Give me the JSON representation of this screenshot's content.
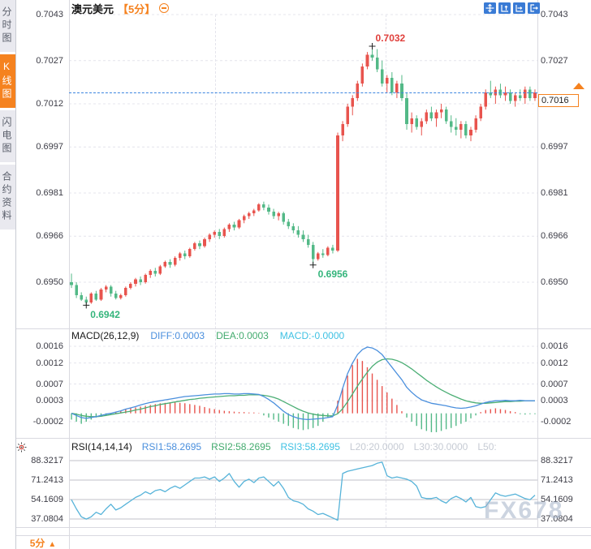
{
  "header": {
    "symbol": "澳元美元",
    "period_tag": "【5分】",
    "toolbar_icons": [
      "crosshair-icon",
      "y-axis-zoom-icon",
      "x-axis-zoom-icon",
      "exit-chart-icon"
    ]
  },
  "sidebar": {
    "tabs": [
      {
        "label": "分时图",
        "active": false
      },
      {
        "label": "K线图",
        "active": true
      },
      {
        "label": "闪电图",
        "active": false
      },
      {
        "label": "合约资料",
        "active": false
      }
    ]
  },
  "current_price": {
    "value": "0.7016",
    "price": 0.7016
  },
  "annotations": {
    "high": {
      "label": "0.7032",
      "candle_index": 61,
      "price": 0.7032
    },
    "low": {
      "label": "0.6942",
      "candle_index": 3,
      "price": 0.6942
    },
    "swing_low": {
      "label": "0.6956",
      "candle_index": 49,
      "price": 0.6956
    }
  },
  "macd": {
    "title": "MACD(26,12,9)",
    "diff_label": "DIFF:0.0003",
    "dea_label": "DEA:0.0003",
    "macd_label": "MACD:-0.0000"
  },
  "rsi": {
    "title": "RSI(14,14,14)",
    "rsi1_label": "RSI1:58.2695",
    "rsi2_label": "RSI2:58.2695",
    "rsi3_label": "RSI3:58.2695",
    "l20_label": "L20:20.0000",
    "l30_label": "L30:30.0000",
    "l50_label": "L50:"
  },
  "footer": {
    "period_label": "5分",
    "arrow": "▲"
  },
  "watermark": {
    "text": "FX678"
  },
  "colors": {
    "up": "#e8544e",
    "down": "#53b987",
    "accent": "#f5821f",
    "diff_line": "#4a8fdd",
    "dea_line": "#4bae74",
    "rsi_line": "#56b3d9",
    "price_line": "#3d86e0",
    "grid_dashed": "#e4e4ec",
    "grid_solid": "#c2c2c8"
  },
  "chart_data": [
    {
      "type": "candlestick",
      "title": "澳元美元 5分",
      "ylim": [
        0.694,
        0.7045
      ],
      "y_tick_labels": [
        "0.7043",
        "0.7027",
        "0.7012",
        "0.6997",
        "0.6981",
        "0.6966",
        "0.6950"
      ],
      "y_tick_values": [
        0.7043,
        0.7027,
        0.7012,
        0.6997,
        0.6981,
        0.6966,
        0.695
      ],
      "last_price": 0.7016,
      "marked_high": 0.7032,
      "marked_low": 0.6942,
      "marked_swing_low": 0.6956,
      "ohlc": [
        [
          0.695,
          0.6953,
          0.6948,
          0.6949
        ],
        [
          0.6949,
          0.695,
          0.69445,
          0.69455
        ],
        [
          0.69455,
          0.69465,
          0.69435,
          0.6944
        ],
        [
          0.6944,
          0.6945,
          0.6942,
          0.6943
        ],
        [
          0.6943,
          0.69465,
          0.69425,
          0.6946
        ],
        [
          0.6946,
          0.6947,
          0.69435,
          0.6944
        ],
        [
          0.6944,
          0.6948,
          0.69435,
          0.69475
        ],
        [
          0.69475,
          0.6949,
          0.69465,
          0.69485
        ],
        [
          0.69485,
          0.6949,
          0.6945,
          0.6946
        ],
        [
          0.6946,
          0.6947,
          0.6944,
          0.69445
        ],
        [
          0.69445,
          0.6946,
          0.6944,
          0.69455
        ],
        [
          0.69455,
          0.69485,
          0.6945,
          0.6948
        ],
        [
          0.6948,
          0.695,
          0.69475,
          0.69495
        ],
        [
          0.69495,
          0.69515,
          0.69485,
          0.6951
        ],
        [
          0.6951,
          0.6952,
          0.6949,
          0.695
        ],
        [
          0.695,
          0.6953,
          0.69495,
          0.69525
        ],
        [
          0.69525,
          0.69545,
          0.69515,
          0.6954
        ],
        [
          0.6954,
          0.6955,
          0.6952,
          0.6953
        ],
        [
          0.6953,
          0.6956,
          0.69525,
          0.69555
        ],
        [
          0.69555,
          0.69575,
          0.6955,
          0.6957
        ],
        [
          0.6957,
          0.6958,
          0.6955,
          0.6956
        ],
        [
          0.6956,
          0.6959,
          0.69555,
          0.69585
        ],
        [
          0.69585,
          0.69605,
          0.69575,
          0.696
        ],
        [
          0.696,
          0.6961,
          0.6958,
          0.6959
        ],
        [
          0.6959,
          0.6962,
          0.69585,
          0.69615
        ],
        [
          0.69615,
          0.6964,
          0.6961,
          0.69635
        ],
        [
          0.69635,
          0.69645,
          0.69615,
          0.69625
        ],
        [
          0.69625,
          0.69655,
          0.6962,
          0.6965
        ],
        [
          0.6965,
          0.6967,
          0.6964,
          0.69665
        ],
        [
          0.69665,
          0.6968,
          0.69655,
          0.69675
        ],
        [
          0.69675,
          0.69685,
          0.6965,
          0.6966
        ],
        [
          0.6966,
          0.6969,
          0.69655,
          0.69685
        ],
        [
          0.69685,
          0.69705,
          0.69675,
          0.697
        ],
        [
          0.697,
          0.6971,
          0.6968,
          0.6969
        ],
        [
          0.6969,
          0.6972,
          0.69685,
          0.69715
        ],
        [
          0.69715,
          0.69735,
          0.69705,
          0.6973
        ],
        [
          0.6973,
          0.69745,
          0.6972,
          0.6974
        ],
        [
          0.6974,
          0.69755,
          0.6973,
          0.6975
        ],
        [
          0.6975,
          0.69775,
          0.69745,
          0.6977
        ],
        [
          0.6977,
          0.6978,
          0.6975,
          0.6976
        ],
        [
          0.6976,
          0.6977,
          0.69735,
          0.69745
        ],
        [
          0.69745,
          0.69755,
          0.6972,
          0.6973
        ],
        [
          0.6973,
          0.69745,
          0.69715,
          0.6974
        ],
        [
          0.6974,
          0.69745,
          0.697,
          0.6971
        ],
        [
          0.6971,
          0.6972,
          0.69685,
          0.69695
        ],
        [
          0.69695,
          0.69705,
          0.6967,
          0.6968
        ],
        [
          0.6968,
          0.69695,
          0.69655,
          0.69665
        ],
        [
          0.69665,
          0.6968,
          0.6964,
          0.6965
        ],
        [
          0.6965,
          0.69665,
          0.6962,
          0.6963
        ],
        [
          0.6963,
          0.6964,
          0.6956,
          0.6958
        ],
        [
          0.6958,
          0.69605,
          0.69575,
          0.696
        ],
        [
          0.696,
          0.69615,
          0.69585,
          0.69595
        ],
        [
          0.69595,
          0.69625,
          0.6959,
          0.6962
        ],
        [
          0.6962,
          0.6963,
          0.696,
          0.6961
        ],
        [
          0.6961,
          0.7002,
          0.69605,
          0.7001
        ],
        [
          0.7001,
          0.7006,
          0.6999,
          0.7005
        ],
        [
          0.7005,
          0.7012,
          0.7004,
          0.7011
        ],
        [
          0.7011,
          0.7015,
          0.7008,
          0.7014
        ],
        [
          0.7014,
          0.702,
          0.7013,
          0.7019
        ],
        [
          0.7019,
          0.7026,
          0.7018,
          0.7025
        ],
        [
          0.7025,
          0.703,
          0.7024,
          0.7029
        ],
        [
          0.7029,
          0.7032,
          0.7027,
          0.7028
        ],
        [
          0.7028,
          0.7031,
          0.7023,
          0.7024
        ],
        [
          0.7024,
          0.7027,
          0.7018,
          0.7019
        ],
        [
          0.7019,
          0.7022,
          0.7016,
          0.7021
        ],
        [
          0.7021,
          0.7023,
          0.7015,
          0.7016
        ],
        [
          0.7016,
          0.702,
          0.7014,
          0.7019
        ],
        [
          0.7019,
          0.7022,
          0.7013,
          0.7014
        ],
        [
          0.7014,
          0.7016,
          0.7003,
          0.7005
        ],
        [
          0.7005,
          0.7009,
          0.7002,
          0.7007
        ],
        [
          0.7007,
          0.7008,
          0.7003,
          0.7004
        ],
        [
          0.7004,
          0.7007,
          0.7001,
          0.7006
        ],
        [
          0.7006,
          0.701,
          0.7005,
          0.7009
        ],
        [
          0.7009,
          0.7011,
          0.7006,
          0.7007
        ],
        [
          0.7007,
          0.701,
          0.7004,
          0.7009
        ],
        [
          0.7009,
          0.7012,
          0.7007,
          0.701
        ],
        [
          0.701,
          0.7011,
          0.7005,
          0.7006
        ],
        [
          0.7006,
          0.7008,
          0.7002,
          0.7004
        ],
        [
          0.7004,
          0.7007,
          0.7001,
          0.7003
        ],
        [
          0.7003,
          0.7006,
          0.7,
          0.7005
        ],
        [
          0.7005,
          0.7006,
          0.7,
          0.7001
        ],
        [
          0.7001,
          0.7004,
          0.6999,
          0.7003
        ],
        [
          0.7003,
          0.7008,
          0.7002,
          0.7007
        ],
        [
          0.7007,
          0.7012,
          0.7006,
          0.7011
        ],
        [
          0.7011,
          0.7017,
          0.701,
          0.7016
        ],
        [
          0.7016,
          0.702,
          0.7014,
          0.7015
        ],
        [
          0.7015,
          0.7018,
          0.7012,
          0.7017
        ],
        [
          0.7017,
          0.7019,
          0.7014,
          0.7015
        ],
        [
          0.7015,
          0.7018,
          0.7013,
          0.7016
        ],
        [
          0.7016,
          0.7017,
          0.7012,
          0.7013
        ],
        [
          0.7013,
          0.7016,
          0.7011,
          0.7015
        ],
        [
          0.7015,
          0.7017,
          0.7013,
          0.7014
        ],
        [
          0.7014,
          0.7018,
          0.7012,
          0.7017
        ],
        [
          0.7017,
          0.7018,
          0.7013,
          0.7014
        ],
        [
          0.7014,
          0.7017,
          0.7013,
          0.7016
        ]
      ]
    },
    {
      "type": "macd",
      "params": [
        26,
        12,
        9
      ],
      "y_tick_labels": [
        "0.0016",
        "0.0012",
        "0.0007",
        "0.0003",
        "-0.0002"
      ],
      "y_tick_values": [
        0.0016,
        0.0012,
        0.0007,
        0.0003,
        -0.0002
      ],
      "diff": [
        0,
        -5e-05,
        -0.0001,
        -0.00012,
        -0.0001,
        -8e-05,
        -5e-05,
        -2e-05,
        0,
        3e-05,
        6e-05,
        0.0001,
        0.00013,
        0.00016,
        0.0002,
        0.00023,
        0.00026,
        0.00028,
        0.0003,
        0.00032,
        0.00034,
        0.00036,
        0.00038,
        0.0004,
        0.00041,
        0.00042,
        0.00043,
        0.00044,
        0.00045,
        0.00046,
        0.00046,
        0.00047,
        0.00047,
        0.00046,
        0.00046,
        0.00047,
        0.00047,
        0.00046,
        0.00045,
        0.0004,
        0.00033,
        0.00025,
        0.00015,
        5e-05,
        -3e-05,
        -8e-05,
        -0.00012,
        -0.00014,
        -0.00015,
        -0.00014,
        -0.00013,
        -0.00012,
        -0.0001,
        -8e-05,
        0.0002,
        0.0006,
        0.00095,
        0.0012,
        0.0014,
        0.00152,
        0.00158,
        0.00156,
        0.0015,
        0.0014,
        0.00125,
        0.0011,
        0.00095,
        0.0008,
        0.00062,
        0.0005,
        0.0004,
        0.00032,
        0.00028,
        0.00024,
        0.00022,
        0.0002,
        0.00018,
        0.00015,
        0.00013,
        0.00012,
        0.00013,
        0.00015,
        0.00018,
        0.00022,
        0.00026,
        0.00028,
        0.0003,
        0.0003,
        0.00031,
        0.0003,
        0.0003,
        0.00031,
        0.0003,
        0.0003,
        0.0003
      ],
      "dea": [
        0,
        -2e-05,
        -5e-05,
        -7e-05,
        -8e-05,
        -8e-05,
        -7e-05,
        -5e-05,
        -3e-05,
        -1e-05,
        1e-05,
        3e-05,
        5e-05,
        8e-05,
        0.0001,
        0.00013,
        0.00016,
        0.00018,
        0.00021,
        0.00023,
        0.00025,
        0.00027,
        0.00029,
        0.00031,
        0.00033,
        0.00034,
        0.00036,
        0.00037,
        0.00038,
        0.00039,
        0.0004,
        0.00041,
        0.00042,
        0.00042,
        0.00043,
        0.00043,
        0.00044,
        0.00044,
        0.00044,
        0.00043,
        0.00041,
        0.00038,
        0.00034,
        0.00028,
        0.00022,
        0.00016,
        0.0001,
        5e-05,
        1e-05,
        -2e-05,
        -4e-05,
        -5e-05,
        -6e-05,
        -6e-05,
        -1e-05,
        0.00011,
        0.00028,
        0.00046,
        0.00065,
        0.00082,
        0.00098,
        0.00112,
        0.00122,
        0.00128,
        0.0013,
        0.00129,
        0.00126,
        0.00121,
        0.00114,
        0.00106,
        0.00097,
        0.00088,
        0.00079,
        0.00071,
        0.00063,
        0.00056,
        0.0005,
        0.00044,
        0.00039,
        0.00034,
        0.0003,
        0.00027,
        0.00025,
        0.00024,
        0.00024,
        0.00025,
        0.00026,
        0.00027,
        0.00028,
        0.00028,
        0.00029,
        0.00029,
        0.0003,
        0.0003,
        0.0003
      ],
      "histogram": [
        -0.00015,
        -0.0002,
        -0.00025,
        -0.0002,
        -0.00015,
        -0.0001,
        -8e-05,
        -5e-05,
        -2e-05,
        3e-05,
        6e-05,
        0.0001,
        0.00012,
        0.00014,
        0.00016,
        0.00018,
        0.0002,
        0.00022,
        0.00024,
        0.00025,
        0.00026,
        0.00026,
        0.00025,
        0.00024,
        0.00022,
        0.0002,
        0.00018,
        0.00015,
        0.00012,
        0.0001,
        8e-05,
        6e-05,
        5e-05,
        4e-05,
        3e-05,
        3e-05,
        2e-05,
        2e-05,
        1e-05,
        -5e-05,
        -0.0001,
        -0.00015,
        -0.0002,
        -0.00025,
        -0.0003,
        -0.00035,
        -0.00038,
        -0.0004,
        -0.00038,
        -0.00035,
        -0.0003,
        -0.0002,
        -0.0001,
        -3e-05,
        0.0003,
        0.0006,
        0.0009,
        0.00115,
        0.0013,
        0.00125,
        0.0011,
        0.00095,
        0.0008,
        0.00065,
        0.0005,
        0.00035,
        0.0002,
        5e-05,
        -0.0001,
        -0.0002,
        -0.0003,
        -0.00038,
        -0.00042,
        -0.00045,
        -0.00045,
        -0.00042,
        -0.00038,
        -0.00035,
        -0.0003,
        -0.00025,
        -0.0002,
        -0.00012,
        -5e-05,
        3e-05,
        8e-05,
        0.0001,
        0.00012,
        0.0001,
        8e-05,
        5e-05,
        3e-05,
        -2e-05,
        -3e-05,
        -2e-05,
        -2e-05
      ]
    },
    {
      "type": "rsi",
      "params": [
        14,
        14,
        14
      ],
      "y_tick_labels": [
        "88.3217",
        "71.2413",
        "54.1609",
        "37.0804"
      ],
      "y_tick_values": [
        88.3217,
        71.2413,
        54.1609,
        37.0804
      ],
      "levels": {
        "L20": 20.0,
        "L30": 30.0,
        "L50": null
      },
      "rsi": [
        54,
        46,
        39,
        37,
        39,
        43,
        41,
        46,
        50,
        45,
        47,
        50,
        53,
        56,
        58,
        61,
        59,
        62,
        63,
        61,
        64,
        66,
        64,
        67,
        70,
        73,
        73,
        74,
        72,
        74,
        70,
        73,
        77,
        70,
        65,
        70,
        72,
        69,
        73,
        74,
        70,
        66,
        70,
        64,
        56,
        53,
        52,
        50,
        46,
        44,
        41,
        42,
        40,
        38,
        36,
        77,
        79,
        80,
        81,
        82,
        83,
        84,
        86,
        87,
        75,
        73,
        74,
        73,
        72,
        70,
        66,
        56,
        55,
        55,
        56,
        53,
        51,
        55,
        57,
        55,
        52,
        56,
        48,
        47,
        48,
        54,
        60,
        58,
        57,
        58,
        59,
        57,
        55,
        54,
        58
      ]
    }
  ]
}
